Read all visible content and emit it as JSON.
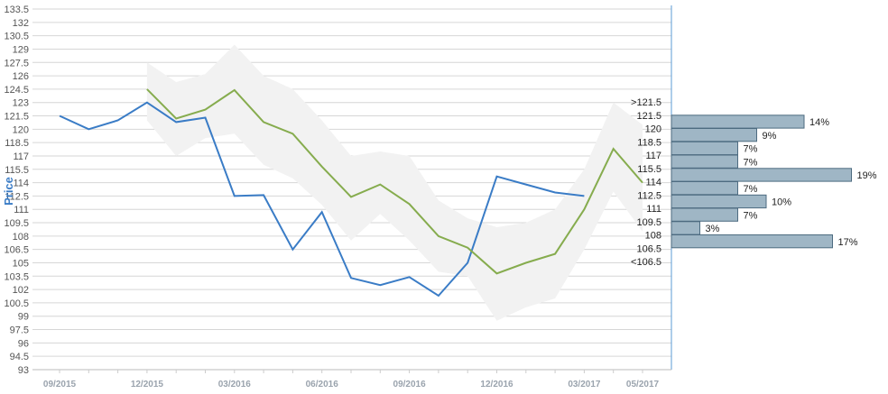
{
  "chart_data": {
    "type": "line",
    "ylabel": "Price",
    "ylim": [
      93,
      133.5
    ],
    "y_ticks": [
      "133.5",
      "132",
      "130.5",
      "129",
      "127.5",
      "126",
      "124.5",
      "123",
      "121.5",
      "120",
      "118.5",
      "117",
      "115.5",
      "114",
      "112.5",
      "111",
      "109.5",
      "108",
      "106.5",
      "105",
      "103.5",
      "102",
      "100.5",
      "99",
      "97.5",
      "96",
      "94.5",
      "93"
    ],
    "x_ticks": [
      "09/2015",
      "12/2015",
      "03/2016",
      "06/2016",
      "09/2016",
      "12/2016",
      "03/2017",
      "05/2017"
    ],
    "x_tick_months": [
      0,
      3,
      6,
      9,
      12,
      15,
      18,
      20
    ],
    "grid": true,
    "series": [
      {
        "color": "#3a7cc6",
        "x_months": [
          0,
          1,
          2,
          3,
          4,
          5,
          6,
          7,
          8,
          9,
          10,
          11,
          12,
          13,
          14,
          15,
          16,
          17,
          18
        ],
        "values": [
          121.5,
          120.0,
          121.0,
          123.0,
          120.8,
          121.3,
          112.5,
          112.6,
          106.5,
          110.7,
          103.3,
          102.5,
          103.4,
          101.3,
          105.0,
          114.7,
          113.8,
          112.9,
          112.5
        ]
      },
      {
        "color": "#86ac4e",
        "x_months": [
          3,
          4,
          5,
          6,
          7,
          8,
          9,
          10,
          11,
          12,
          13,
          14,
          15,
          16,
          17,
          18,
          19,
          20
        ],
        "values": [
          124.5,
          121.2,
          122.2,
          124.4,
          120.8,
          119.5,
          115.8,
          112.4,
          113.8,
          111.6,
          108.0,
          106.7,
          103.8,
          105.0,
          106.0,
          111.0,
          117.8,
          114.0
        ]
      }
    ],
    "band": {
      "color": "#f2f2f2",
      "x_months": [
        3,
        4,
        5,
        6,
        7,
        8,
        9,
        10,
        11,
        12,
        13,
        14,
        15,
        16,
        17,
        18,
        19,
        20
      ],
      "upper": [
        127.5,
        125.3,
        126.2,
        129.5,
        126.0,
        124.5,
        121.0,
        117.0,
        117.5,
        117.0,
        112.0,
        110.0,
        109.0,
        109.5,
        111.0,
        115.5,
        123.0,
        120.5
      ],
      "lower": [
        121.0,
        117.0,
        119.0,
        119.5,
        116.0,
        114.5,
        111.5,
        107.5,
        110.5,
        107.5,
        104.0,
        103.5,
        98.5,
        100.0,
        101.0,
        106.5,
        113.0,
        108.5
      ]
    },
    "distribution": {
      "bar_color": "#9fb6c5",
      "bar_border": "#4d6b80",
      "bins": [
        {
          "label": ">121.5",
          "pct": null,
          "value": 0
        },
        {
          "label": "121.5",
          "pct": "14%",
          "value": 14
        },
        {
          "label": "120",
          "pct": "9%",
          "value": 9
        },
        {
          "label": "118.5",
          "pct": "7%",
          "value": 7
        },
        {
          "label": "117",
          "pct": "7%",
          "value": 7
        },
        {
          "label": "115.5",
          "pct": "19%",
          "value": 19
        },
        {
          "label": "114",
          "pct": "7%",
          "value": 7
        },
        {
          "label": "112.5",
          "pct": "10%",
          "value": 10
        },
        {
          "label": "111",
          "pct": "7%",
          "value": 7
        },
        {
          "label": "109.5",
          "pct": "3%",
          "value": 3
        },
        {
          "label": "108",
          "pct": "17%",
          "value": 17
        },
        {
          "label": "106.5",
          "pct": null,
          "value": 0
        },
        {
          "label": "<106.5",
          "pct": null,
          "value": 0
        }
      ]
    }
  }
}
